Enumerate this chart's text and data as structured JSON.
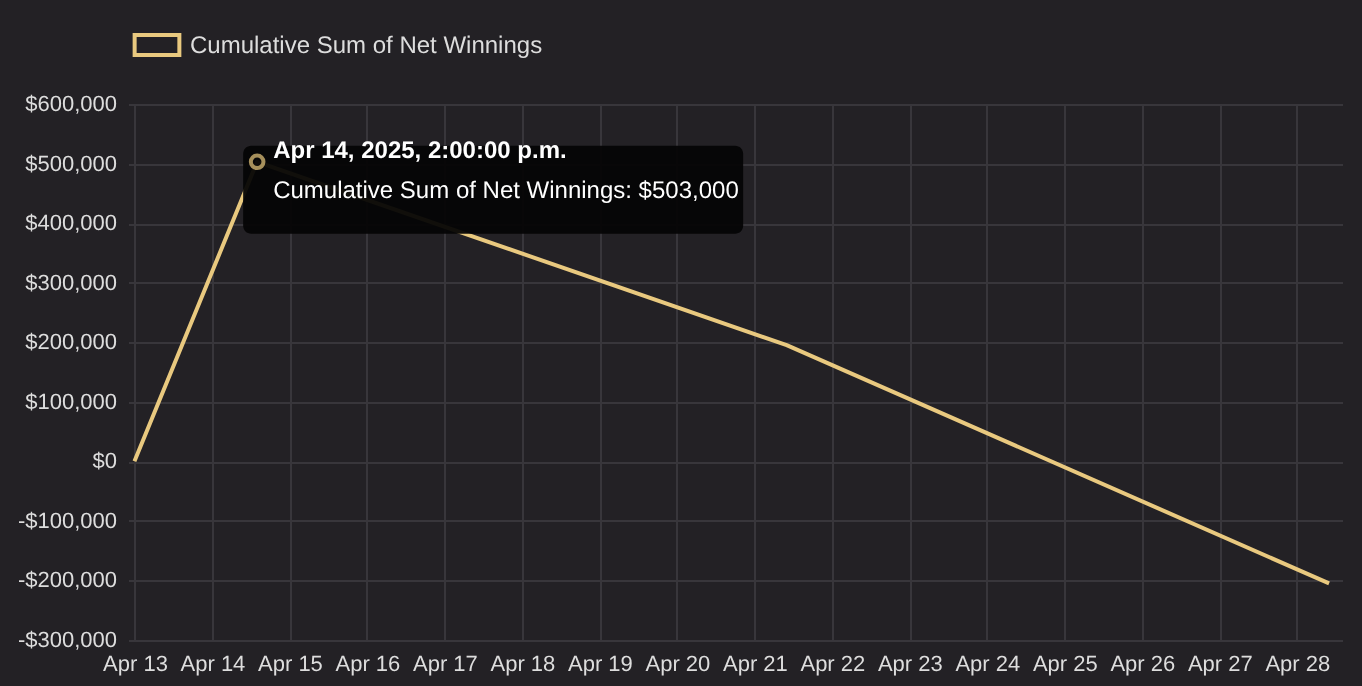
{
  "chart_data": {
    "type": "line",
    "x": [
      "2025-04-13T00:00",
      "2025-04-14T14:00",
      "2025-04-21T10:00",
      "2025-04-28T10:00"
    ],
    "series": [
      {
        "name": "Cumulative Sum of Net Winnings",
        "color": "#e9c97f",
        "values": [
          0,
          503000,
          195000,
          -205000
        ]
      }
    ],
    "xlim": [
      "2025-04-12T22:00",
      "2025-04-28T14:00"
    ],
    "xticks": [
      {
        "value": "2025-04-13",
        "label": "Apr 13"
      },
      {
        "value": "2025-04-14",
        "label": "Apr 14"
      },
      {
        "value": "2025-04-15",
        "label": "Apr 15"
      },
      {
        "value": "2025-04-16",
        "label": "Apr 16"
      },
      {
        "value": "2025-04-17",
        "label": "Apr 17"
      },
      {
        "value": "2025-04-18",
        "label": "Apr 18"
      },
      {
        "value": "2025-04-19",
        "label": "Apr 19"
      },
      {
        "value": "2025-04-20",
        "label": "Apr 20"
      },
      {
        "value": "2025-04-21",
        "label": "Apr 21"
      },
      {
        "value": "2025-04-22",
        "label": "Apr 22"
      },
      {
        "value": "2025-04-23",
        "label": "Apr 23"
      },
      {
        "value": "2025-04-24",
        "label": "Apr 24"
      },
      {
        "value": "2025-04-25",
        "label": "Apr 25"
      },
      {
        "value": "2025-04-26",
        "label": "Apr 26"
      },
      {
        "value": "2025-04-27",
        "label": "Apr 27"
      },
      {
        "value": "2025-04-28",
        "label": "Apr 28"
      }
    ],
    "ylim": [
      -300000,
      600000
    ],
    "yticks": [
      {
        "value": -300000,
        "label": "-$300,000"
      },
      {
        "value": -200000,
        "label": "-$200,000"
      },
      {
        "value": -100000,
        "label": "-$100,000"
      },
      {
        "value": 0,
        "label": "$0"
      },
      {
        "value": 100000,
        "label": "$100,000"
      },
      {
        "value": 200000,
        "label": "$200,000"
      },
      {
        "value": 300000,
        "label": "$300,000"
      },
      {
        "value": 400000,
        "label": "$400,000"
      },
      {
        "value": 500000,
        "label": "$500,000"
      },
      {
        "value": 600000,
        "label": "$600,000"
      }
    ],
    "annotations": [
      {
        "text": "Apr 14, 2025, 2:00:00 p.m.",
        "x": "2025-04-14T14:00",
        "y": 503000
      },
      {
        "text": "Cumulative Sum of Net Winnings: $503,000",
        "x": "2025-04-14T14:00",
        "y": 503000
      }
    ],
    "grid": true,
    "legend": "top",
    "marker": "none",
    "line_style": "solid"
  }
}
